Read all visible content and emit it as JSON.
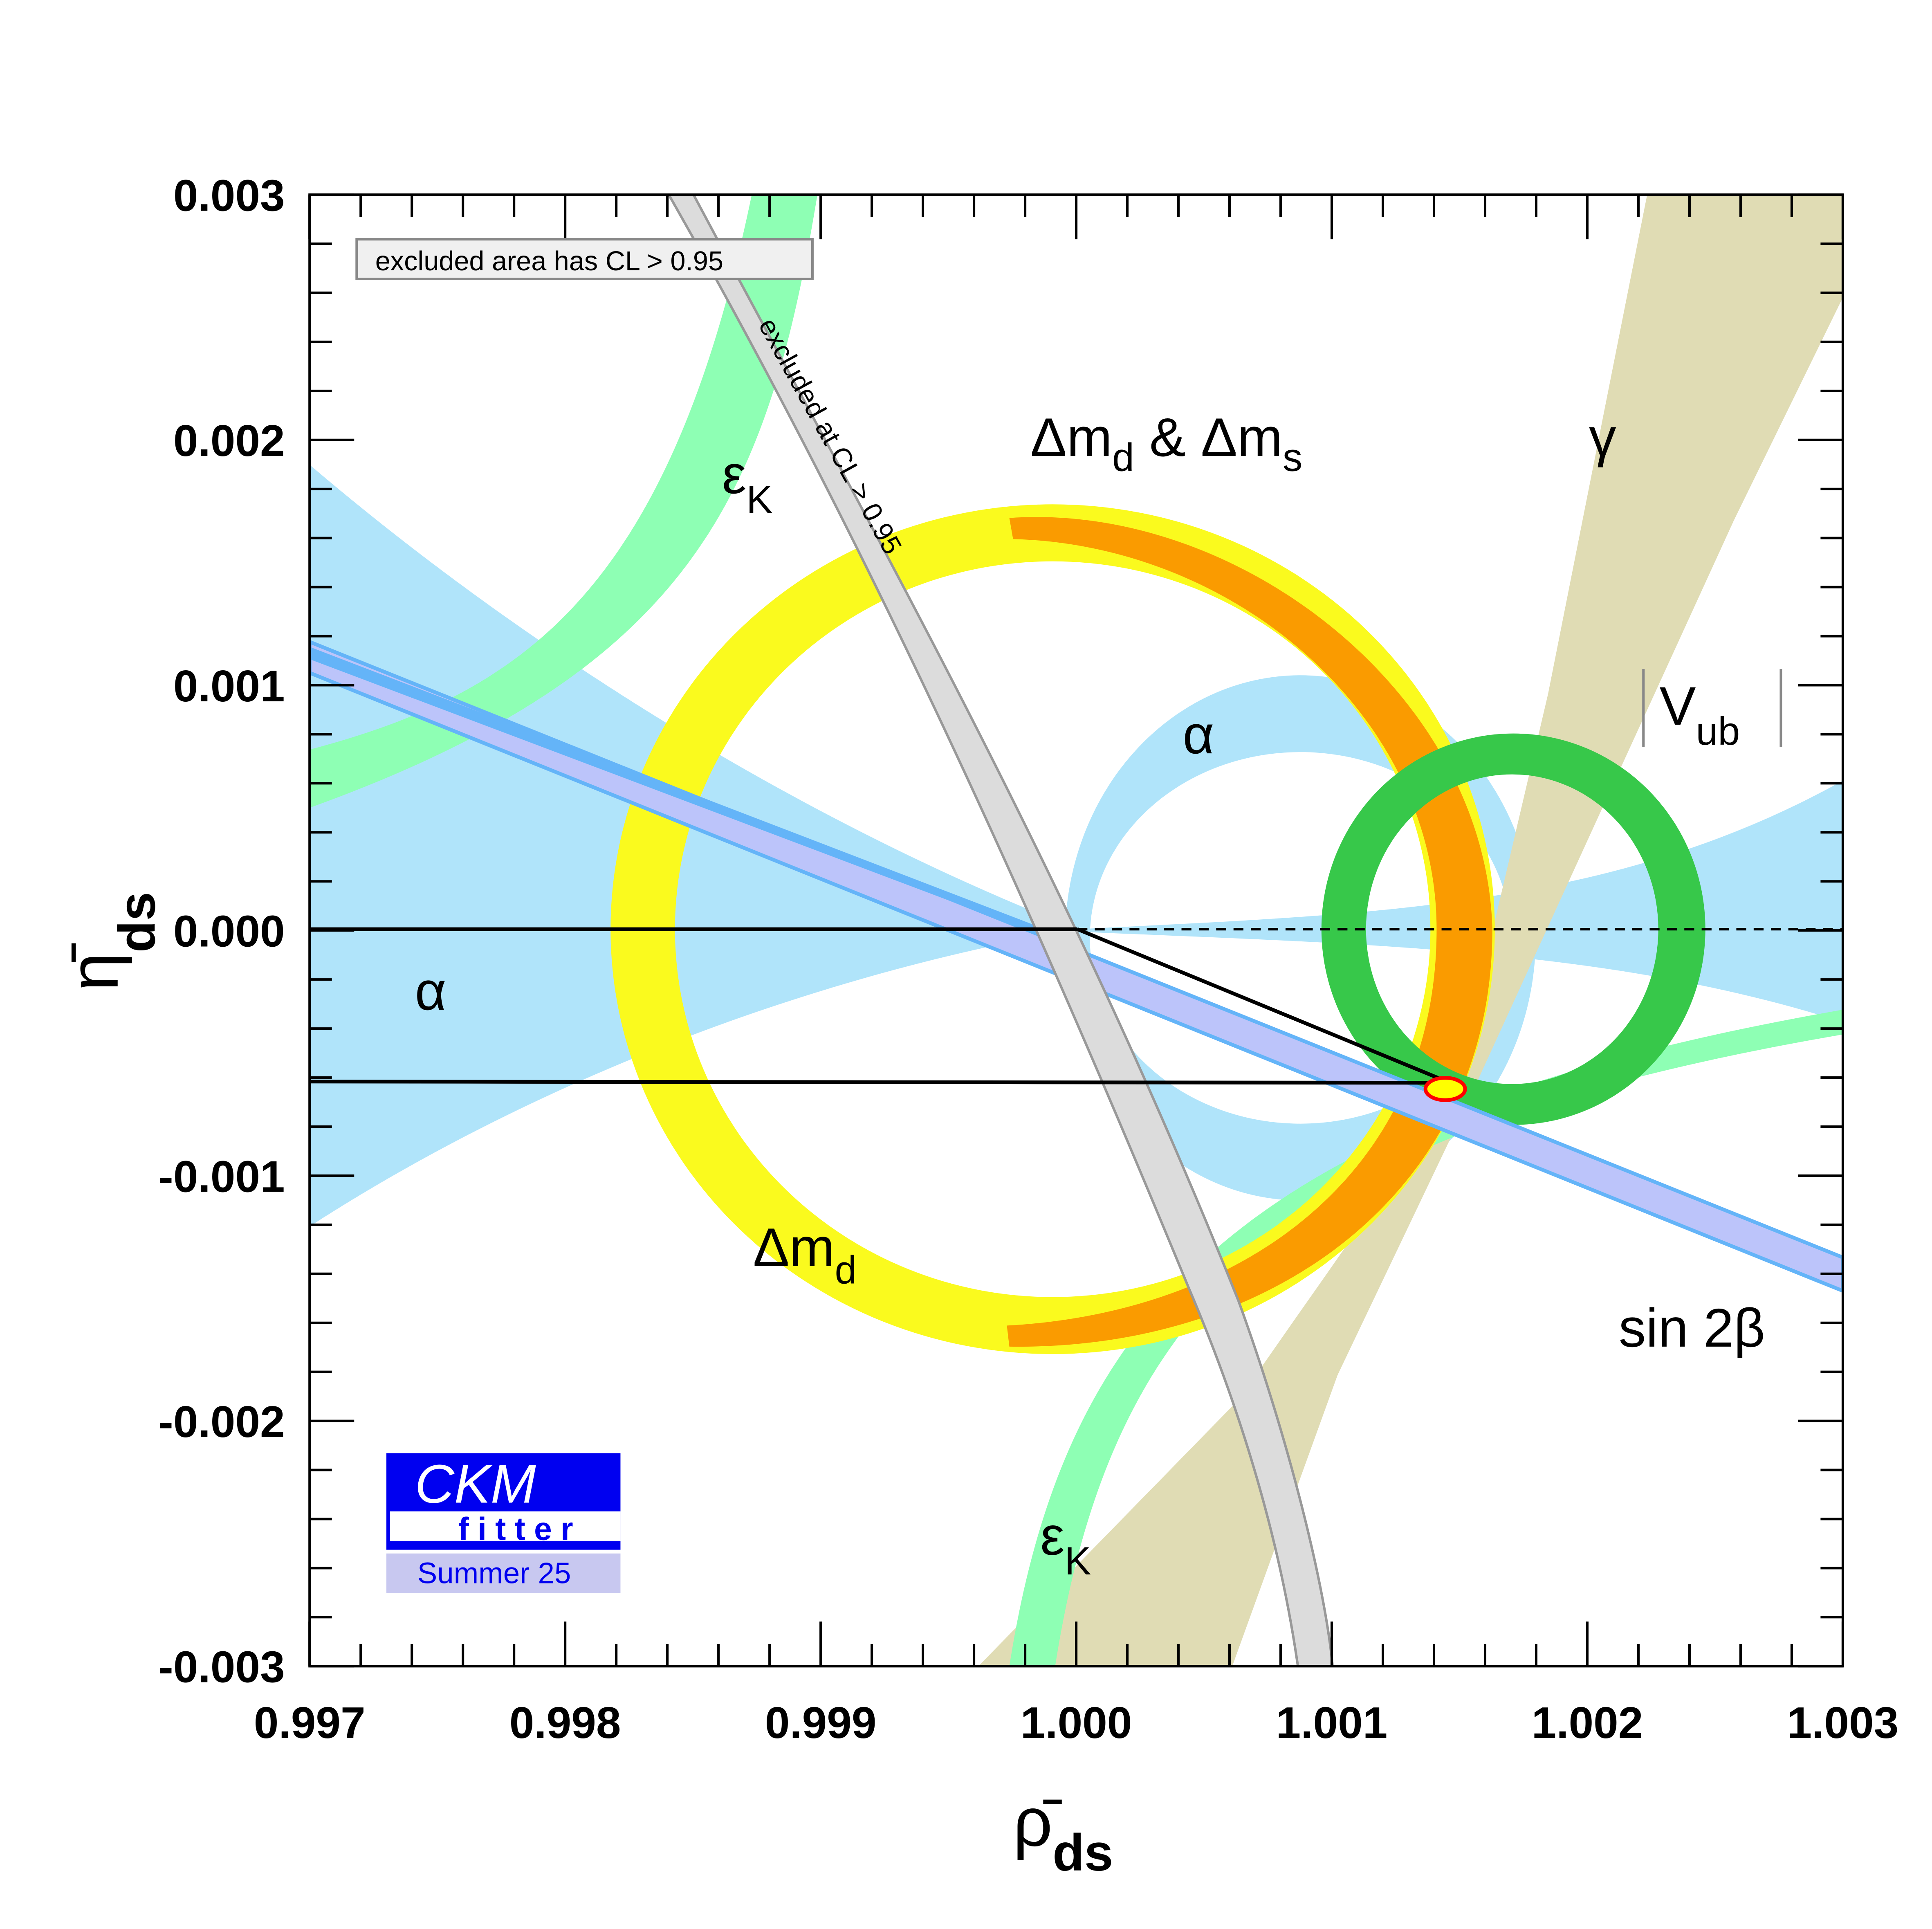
{
  "chart_data": {
    "type": "area",
    "title": "",
    "xlabel": "ρ̄",
    "xlabel_sub": "ds",
    "ylabel": "η̄",
    "ylabel_sub": "ds",
    "xlim": [
      0.997,
      1.003
    ],
    "ylim": [
      -0.003,
      0.003
    ],
    "x_ticks": [
      "0.997",
      "0.998",
      "0.999",
      "1.000",
      "1.001",
      "1.002",
      "1.003"
    ],
    "y_ticks": [
      "0.003",
      "0.002",
      "0.001",
      "0.000",
      "-0.001",
      "-0.002",
      "-0.003"
    ],
    "x_tick_values": [
      0.997,
      0.998,
      0.999,
      1.0,
      1.001,
      1.002,
      1.003
    ],
    "y_tick_values": [
      0.003,
      0.002,
      0.001,
      0.0,
      -0.001,
      -0.002,
      -0.003
    ],
    "grid": false,
    "legend_box": "excluded area has CL > 0.95",
    "excluded_label": "excluded at CL > 0.95",
    "best_fit_apex": {
      "x": 1.00143,
      "y": -0.00062
    },
    "annotations": {
      "dmd_dms": {
        "main": "Δm",
        "sub1": "d",
        "mid": " & Δm",
        "sub2": "s"
      },
      "epsK_top": {
        "main": "ε",
        "sub": "K"
      },
      "epsK_bottom": {
        "main": "ε",
        "sub": "K"
      },
      "gamma": "γ",
      "alpha_center": "α",
      "alpha_left": "α",
      "vub": {
        "main": "V",
        "sub": "ub"
      },
      "dmd": {
        "main": "Δm",
        "sub": "d"
      },
      "sin2b": "sin 2β"
    },
    "colors": {
      "alpha": "#b0e4fa",
      "epsK": "#8effb4",
      "gamma": "#e0dcb4",
      "dmd": "#fafa1e",
      "dms": "#fa9b00",
      "vub": "#37c84a",
      "sin2b_fill": "#bcc4fa",
      "sin2b_edge": "#64b4f8",
      "excluded": "#dcdcdc",
      "fit": "#ff0000"
    }
  },
  "logo": {
    "line1": "CKM",
    "line2": "fitter",
    "edition": "Summer 25"
  }
}
